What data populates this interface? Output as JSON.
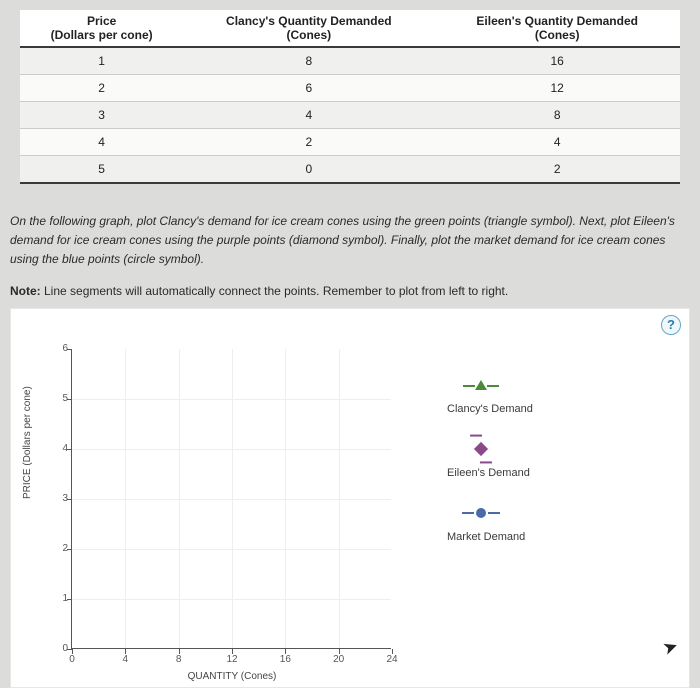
{
  "table": {
    "headers": [
      {
        "top": "Price",
        "sub": "(Dollars per cone)"
      },
      {
        "top": "Clancy's Quantity Demanded",
        "sub": "(Cones)"
      },
      {
        "top": "Eileen's Quantity Demanded",
        "sub": "(Cones)"
      }
    ],
    "rows": [
      [
        "1",
        "8",
        "16"
      ],
      [
        "2",
        "6",
        "12"
      ],
      [
        "3",
        "4",
        "8"
      ],
      [
        "4",
        "2",
        "4"
      ],
      [
        "5",
        "0",
        "2"
      ]
    ]
  },
  "instructions": "On the following graph, plot Clancy's demand for ice cream cones using the green points (triangle symbol). Next, plot Eileen's demand for ice cream cones using the purple points (diamond symbol). Finally, plot the market demand for ice cream cones using the blue points (circle symbol).",
  "note_label": "Note:",
  "note_text": " Line segments will automatically connect the points. Remember to plot from left to right.",
  "help_icon": "?",
  "chart": {
    "x_label": "QUANTITY (Cones)",
    "y_label": "PRICE (Dollars per cone)",
    "x_ticks": [
      "0",
      "4",
      "8",
      "12",
      "16",
      "20",
      "24"
    ],
    "y_ticks": [
      "0",
      "1",
      "2",
      "3",
      "4",
      "5",
      "6"
    ],
    "xlim": [
      0,
      24
    ],
    "ylim": [
      0,
      6
    ],
    "x_step": 4,
    "y_step": 1,
    "grid_color": "#eeeeee",
    "axis_color": "#555555",
    "background": "#ffffff",
    "legend": [
      {
        "label": "Clancy's Demand",
        "color": "#4a8a3a",
        "marker": "triangle"
      },
      {
        "label": "Eileen's Demand",
        "color": "#8a4a8a",
        "marker": "diamond"
      },
      {
        "label": "Market Demand",
        "color": "#4a6aa8",
        "marker": "circle"
      }
    ]
  }
}
